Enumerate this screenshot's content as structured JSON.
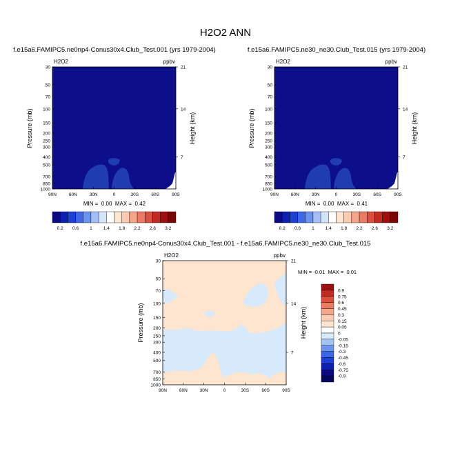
{
  "page": {
    "title": "H2O2 ANN"
  },
  "colors": {
    "panel_fill": "#0d0e8a",
    "blob_fill": "#1f3cb0",
    "diff_warm": "#fde5cf",
    "diff_cool": "#d7eafb"
  },
  "chart_data": [
    {
      "type": "heatmap",
      "title": "f.e15a6.FAMIPC5.ne0np4-Conus30x4.Club_Test.001 (yrs 1979-2004)",
      "left_label": "H2O2",
      "units": "ppbv",
      "ylabel": "Pressure (mb)",
      "ylabel_right": "Height (km)",
      "x_ticks": [
        "90N",
        "60N",
        "30N",
        "0",
        "30S",
        "60S",
        "90S"
      ],
      "y_ticks": [
        "30",
        "50",
        "70",
        "100",
        "150",
        "200",
        "250",
        "300",
        "400",
        "500",
        "700",
        "850",
        "1000"
      ],
      "y_ticks_right": [
        "21",
        "14",
        "7"
      ],
      "stats": "MIN =  0.00  MAX =  0.42",
      "colorbar_labels": [
        "0.2",
        "0.6",
        "1",
        "1.4",
        "1.8",
        "2.2",
        "2.6",
        "3.2"
      ],
      "colorbar_colors": [
        "#0a0a82",
        "#0d1fb0",
        "#1f40d4",
        "#3d67e6",
        "#6d93f0",
        "#a4bff7",
        "#d4e4fb",
        "#ffffff",
        "#fde5cf",
        "#fbcab0",
        "#f5a58a",
        "#ec7b63",
        "#da4f3e",
        "#c12a22",
        "#9e1010",
        "#7a0606"
      ],
      "range": [
        0.0,
        0.42
      ]
    },
    {
      "type": "heatmap",
      "title": "f.e15a6.FAMIPC5.ne30_ne30.Club_Test.015 (yrs 1979-2004)",
      "left_label": "H2O2",
      "units": "ppbv",
      "ylabel": "Pressure (mb)",
      "ylabel_right": "Height (km)",
      "x_ticks": [
        "90N",
        "60N",
        "30N",
        "0",
        "30S",
        "60S",
        "90S"
      ],
      "y_ticks": [
        "30",
        "50",
        "70",
        "100",
        "150",
        "200",
        "250",
        "300",
        "400",
        "500",
        "700",
        "850",
        "1000"
      ],
      "y_ticks_right": [
        "21",
        "14",
        "7"
      ],
      "stats": "MIN =  0.00  MAX =  0.41",
      "colorbar_labels": [
        "0.2",
        "0.6",
        "1",
        "1.4",
        "1.8",
        "2.2",
        "2.6",
        "3.2"
      ],
      "colorbar_colors": [
        "#0a0a82",
        "#0d1fb0",
        "#1f40d4",
        "#3d67e6",
        "#6d93f0",
        "#a4bff7",
        "#d4e4fb",
        "#ffffff",
        "#fde5cf",
        "#fbcab0",
        "#f5a58a",
        "#ec7b63",
        "#da4f3e",
        "#c12a22",
        "#9e1010",
        "#7a0606"
      ],
      "range": [
        0.0,
        0.41
      ]
    },
    {
      "type": "heatmap",
      "title": "f.e15a6.FAMIPC5.ne0np4-Conus30x4.Club_Test.001 - f.e15a6.FAMIPC5.ne30_ne30.Club_Test.015",
      "left_label": "H2O2",
      "units": "ppbv",
      "ylabel": "Pressure (mb)",
      "ylabel_right": "Height (km)",
      "x_ticks": [
        "90N",
        "60N",
        "30N",
        "0",
        "30S",
        "60S",
        "90S"
      ],
      "y_ticks": [
        "30",
        "50",
        "70",
        "100",
        "150",
        "200",
        "250",
        "300",
        "400",
        "500",
        "700",
        "850",
        "1000"
      ],
      "y_ticks_right": [
        "21",
        "14",
        "7"
      ],
      "stats": "MIN = -0.01  MAX =  0.01",
      "colorbar_labels": [
        "0.9",
        "0.75",
        "0.6",
        "0.45",
        "0.3",
        "0.15",
        "0.05",
        "0",
        "-0.05",
        "-0.15",
        "-0.3",
        "-0.45",
        "-0.6",
        "-0.75",
        "-0.9"
      ],
      "colorbar_colors": [
        "#9e1010",
        "#c12a22",
        "#da4f3e",
        "#ec7b63",
        "#f5a58a",
        "#fbcab0",
        "#fde5cf",
        "#ffffff",
        "#d7eafb",
        "#a4c4f5",
        "#6d93f0",
        "#3d67e6",
        "#1f40d4",
        "#0d1fb0",
        "#0a0a82",
        "#06065e"
      ],
      "range": [
        -0.01,
        0.01
      ]
    }
  ]
}
